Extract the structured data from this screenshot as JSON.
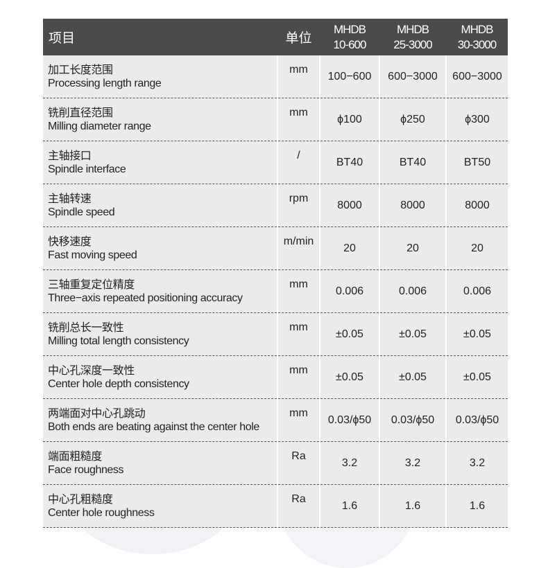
{
  "header": {
    "item": "项目",
    "unit": "单位",
    "models": [
      [
        "MHDB",
        "10-600"
      ],
      [
        "MHDB",
        "25-3000"
      ],
      [
        "MHDB",
        "30-3000"
      ]
    ]
  },
  "rows": [
    {
      "zh": "加工长度范围",
      "en": "Processing length range",
      "unit": "mm",
      "values": [
        "100−600",
        "600−3000",
        "600−3000"
      ]
    },
    {
      "zh": "铣削直径范围",
      "en": "Milling diameter range",
      "unit": "mm",
      "values": [
        "ϕ100",
        "ϕ250",
        "ϕ300"
      ]
    },
    {
      "zh": "主轴接口",
      "en": "Spindle interface",
      "unit": "/",
      "values": [
        "BT40",
        "BT40",
        "BT50"
      ]
    },
    {
      "zh": "主轴转速",
      "en": "Spindle speed",
      "unit": "rpm",
      "values": [
        "8000",
        "8000",
        "8000"
      ]
    },
    {
      "zh": "快移速度",
      "en": "Fast moving speed",
      "unit": "m/min",
      "values": [
        "20",
        "20",
        "20"
      ]
    },
    {
      "zh": "三轴重复定位精度",
      "en": "Three−axis repeated positioning accuracy",
      "unit": "mm",
      "values": [
        "0.006",
        "0.006",
        "0.006"
      ]
    },
    {
      "zh": "铣削总长一致性",
      "en": "Milling total length consistency",
      "unit": "mm",
      "values": [
        "±0.05",
        "±0.05",
        "±0.05"
      ]
    },
    {
      "zh": "中心孔深度一致性",
      "en": "Center hole depth consistency",
      "unit": "mm",
      "values": [
        "±0.05",
        "±0.05",
        "±0.05"
      ]
    },
    {
      "zh": "两端面对中心孔跳动",
      "en": "Both ends are beating against the center hole",
      "unit": "mm",
      "values": [
        "0.03/ϕ50",
        "0.03/ϕ50",
        "0.03/ϕ50"
      ]
    },
    {
      "zh": "端面粗糙度",
      "en": "Face roughness",
      "unit": "Ra",
      "values": [
        "3.2",
        "3.2",
        "3.2"
      ]
    },
    {
      "zh": "中心孔粗糙度",
      "en": "Center hole roughness",
      "unit": "Ra",
      "values": [
        "1.6",
        "1.6",
        "1.6"
      ]
    }
  ]
}
